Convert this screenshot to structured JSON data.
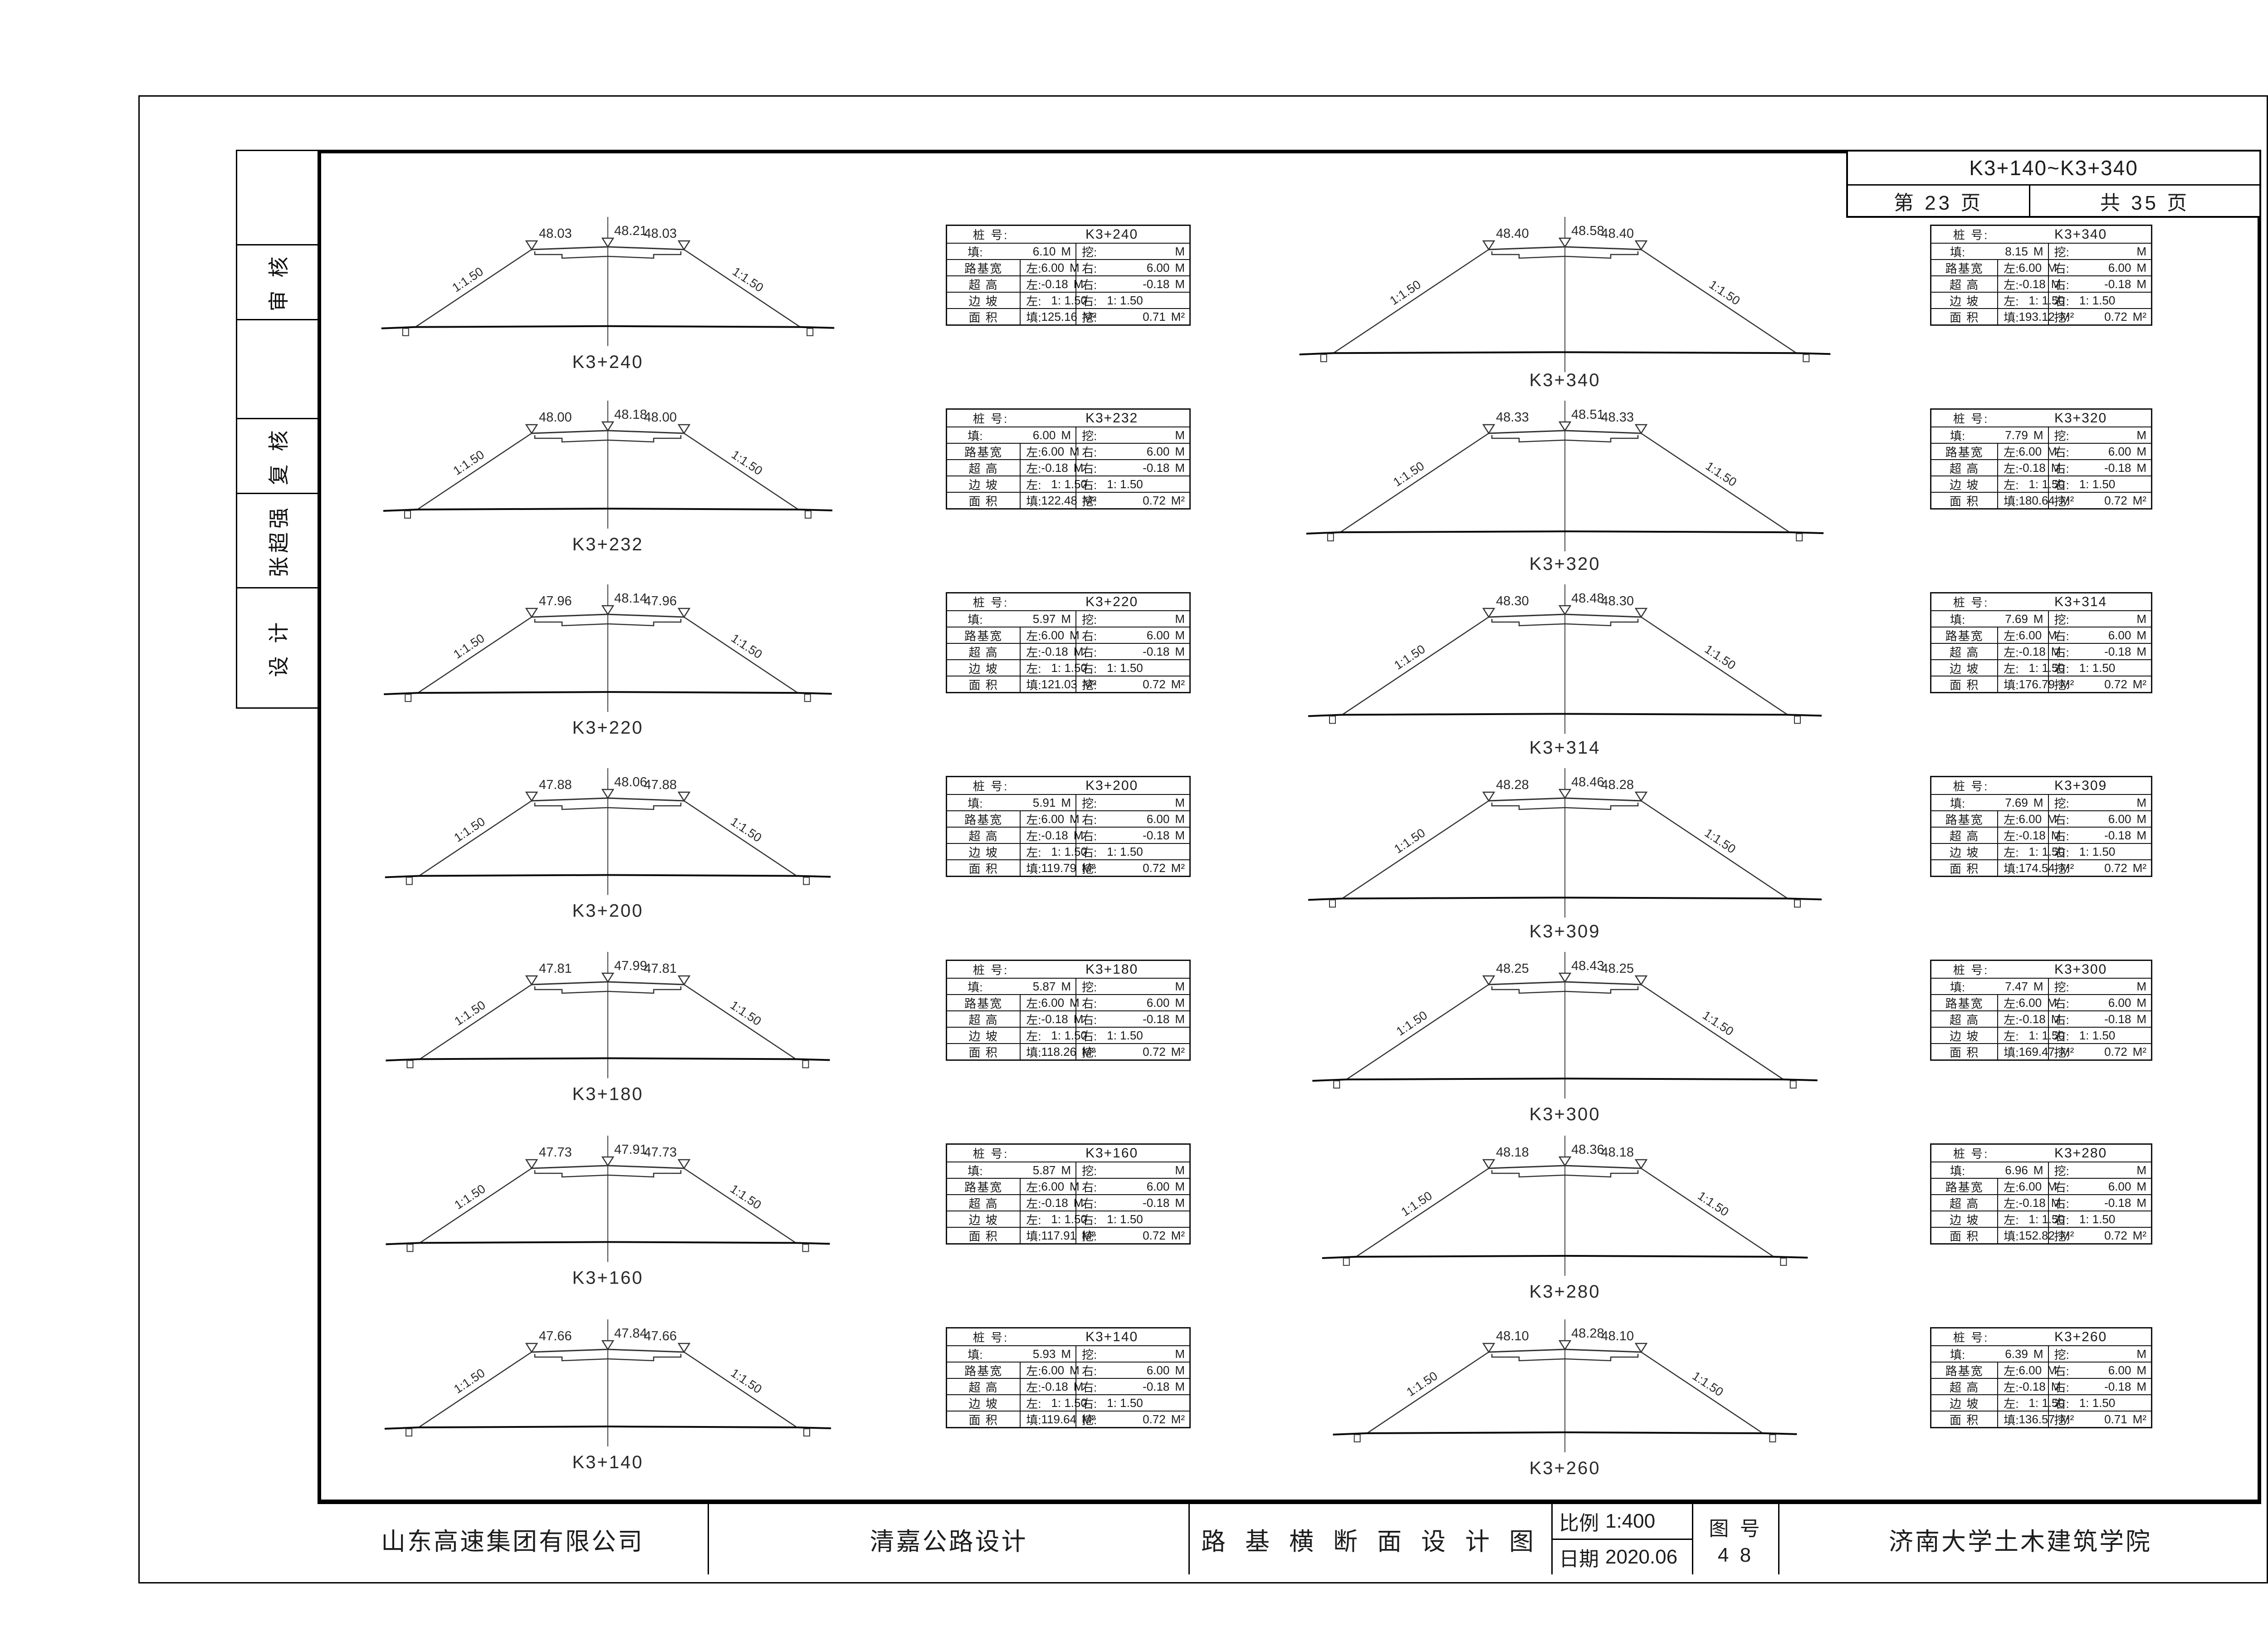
{
  "header": {
    "range": "K3+140~K3+340",
    "page": "第  23  页",
    "total": "共  35  页"
  },
  "signature_strip": [
    "",
    "审 核",
    "",
    "复 核",
    "张超强",
    "设 计"
  ],
  "title_bar": {
    "company": "山东高速集团有限公司",
    "project": "清嘉公路设计",
    "drawing_title": "路 基 横 断 面 设 计 图",
    "scale_label": "比例",
    "scale_value": "1:400",
    "date_label": "日期",
    "date_value": "2020.06",
    "figure_label": "图 号",
    "figure_value": "4 8",
    "institute": "济南大学土木建筑学院"
  },
  "table_labels": {
    "station": "桩  号:",
    "fill": "填:",
    "cut": "挖:",
    "roadbed_width": "路基宽",
    "superelevation": "超 高",
    "slope": "边 坡",
    "area": "面 积",
    "left": "左:",
    "right": "右:",
    "m": "M",
    "m2": "M²",
    "slope_annotation": "1:1.50"
  },
  "sections_left": [
    {
      "station": "K3+240",
      "elev_left": "48.03",
      "elev_center": "48.21",
      "elev_right": "48.03",
      "fill_m": "6.10",
      "cut_m": "",
      "width_left": "6.00",
      "width_right": "6.00",
      "super_left": "-0.18",
      "super_right": "-0.18",
      "slope_left": "1: 1.50",
      "slope_right": "1: 1.50",
      "area_fill": "125.16",
      "area_cut": "0.71"
    },
    {
      "station": "K3+232",
      "elev_left": "48.00",
      "elev_center": "48.18",
      "elev_right": "48.00",
      "fill_m": "6.00",
      "cut_m": "",
      "width_left": "6.00",
      "width_right": "6.00",
      "super_left": "-0.18",
      "super_right": "-0.18",
      "slope_left": "1: 1.50",
      "slope_right": "1: 1.50",
      "area_fill": "122.48",
      "area_cut": "0.72"
    },
    {
      "station": "K3+220",
      "elev_left": "47.96",
      "elev_center": "48.14",
      "elev_right": "47.96",
      "fill_m": "5.97",
      "cut_m": "",
      "width_left": "6.00",
      "width_right": "6.00",
      "super_left": "-0.18",
      "super_right": "-0.18",
      "slope_left": "1: 1.50",
      "slope_right": "1: 1.50",
      "area_fill": "121.03",
      "area_cut": "0.72"
    },
    {
      "station": "K3+200",
      "elev_left": "47.88",
      "elev_center": "48.06",
      "elev_right": "47.88",
      "fill_m": "5.91",
      "cut_m": "",
      "width_left": "6.00",
      "width_right": "6.00",
      "super_left": "-0.18",
      "super_right": "-0.18",
      "slope_left": "1: 1.50",
      "slope_right": "1: 1.50",
      "area_fill": "119.79",
      "area_cut": "0.72"
    },
    {
      "station": "K3+180",
      "elev_left": "47.81",
      "elev_center": "47.99",
      "elev_right": "47.81",
      "fill_m": "5.87",
      "cut_m": "",
      "width_left": "6.00",
      "width_right": "6.00",
      "super_left": "-0.18",
      "super_right": "-0.18",
      "slope_left": "1: 1.50",
      "slope_right": "1: 1.50",
      "area_fill": "118.26",
      "area_cut": "0.72"
    },
    {
      "station": "K3+160",
      "elev_left": "47.73",
      "elev_center": "47.91",
      "elev_right": "47.73",
      "fill_m": "5.87",
      "cut_m": "",
      "width_left": "6.00",
      "width_right": "6.00",
      "super_left": "-0.18",
      "super_right": "-0.18",
      "slope_left": "1: 1.50",
      "slope_right": "1: 1.50",
      "area_fill": "117.91",
      "area_cut": "0.72"
    },
    {
      "station": "K3+140",
      "elev_left": "47.66",
      "elev_center": "47.84",
      "elev_right": "47.66",
      "fill_m": "5.93",
      "cut_m": "",
      "width_left": "6.00",
      "width_right": "6.00",
      "super_left": "-0.18",
      "super_right": "-0.18",
      "slope_left": "1: 1.50",
      "slope_right": "1: 1.50",
      "area_fill": "119.64",
      "area_cut": "0.72"
    }
  ],
  "sections_right": [
    {
      "station": "K3+340",
      "elev_left": "48.40",
      "elev_center": "48.58",
      "elev_right": "48.40",
      "fill_m": "8.15",
      "cut_m": "",
      "width_left": "6.00",
      "width_right": "6.00",
      "super_left": "-0.18",
      "super_right": "-0.18",
      "slope_left": "1: 1.50",
      "slope_right": "1: 1.50",
      "area_fill": "193.12",
      "area_cut": "0.72"
    },
    {
      "station": "K3+320",
      "elev_left": "48.33",
      "elev_center": "48.51",
      "elev_right": "48.33",
      "fill_m": "7.79",
      "cut_m": "",
      "width_left": "6.00",
      "width_right": "6.00",
      "super_left": "-0.18",
      "super_right": "-0.18",
      "slope_left": "1: 1.50",
      "slope_right": "1: 1.50",
      "area_fill": "180.64",
      "area_cut": "0.72"
    },
    {
      "station": "K3+314",
      "elev_left": "48.30",
      "elev_center": "48.48",
      "elev_right": "48.30",
      "fill_m": "7.69",
      "cut_m": "",
      "width_left": "6.00",
      "width_right": "6.00",
      "super_left": "-0.18",
      "super_right": "-0.18",
      "slope_left": "1: 1.50",
      "slope_right": "1: 1.50",
      "area_fill": "176.79",
      "area_cut": "0.72"
    },
    {
      "station": "K3+309",
      "elev_left": "48.28",
      "elev_center": "48.46",
      "elev_right": "48.28",
      "fill_m": "7.69",
      "cut_m": "",
      "width_left": "6.00",
      "width_right": "6.00",
      "super_left": "-0.18",
      "super_right": "-0.18",
      "slope_left": "1: 1.50",
      "slope_right": "1: 1.50",
      "area_fill": "174.54",
      "area_cut": "0.72"
    },
    {
      "station": "K3+300",
      "elev_left": "48.25",
      "elev_center": "48.43",
      "elev_right": "48.25",
      "fill_m": "7.47",
      "cut_m": "",
      "width_left": "6.00",
      "width_right": "6.00",
      "super_left": "-0.18",
      "super_right": "-0.18",
      "slope_left": "1: 1.50",
      "slope_right": "1: 1.50",
      "area_fill": "169.47",
      "area_cut": "0.72"
    },
    {
      "station": "K3+280",
      "elev_left": "48.18",
      "elev_center": "48.36",
      "elev_right": "48.18",
      "fill_m": "6.96",
      "cut_m": "",
      "width_left": "6.00",
      "width_right": "6.00",
      "super_left": "-0.18",
      "super_right": "-0.18",
      "slope_left": "1: 1.50",
      "slope_right": "1: 1.50",
      "area_fill": "152.82",
      "area_cut": "0.72"
    },
    {
      "station": "K3+260",
      "elev_left": "48.10",
      "elev_center": "48.28",
      "elev_right": "48.10",
      "fill_m": "6.39",
      "cut_m": "",
      "width_left": "6.00",
      "width_right": "6.00",
      "super_left": "-0.18",
      "super_right": "-0.18",
      "slope_left": "1: 1.50",
      "slope_right": "1: 1.50",
      "area_fill": "136.57",
      "area_cut": "0.71"
    }
  ]
}
